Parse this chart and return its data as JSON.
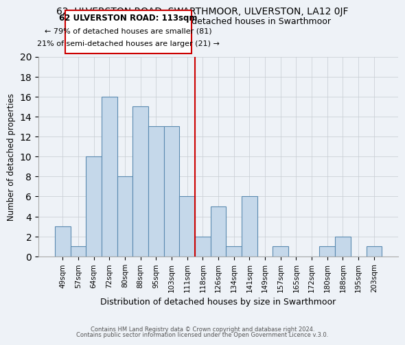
{
  "title": "62, ULVERSTON ROAD, SWARTHMOOR, ULVERSTON, LA12 0JF",
  "subtitle": "Size of property relative to detached houses in Swarthmoor",
  "xlabel": "Distribution of detached houses by size in Swarthmoor",
  "ylabel": "Number of detached properties",
  "bar_color": "#c5d8ea",
  "bar_edge_color": "#5a8ab0",
  "background_color": "#eef2f7",
  "plot_bg_color": "#eef2f7",
  "grid_color": "#c8cdd4",
  "annotation_border_color": "#cc0000",
  "vline_color": "#cc0000",
  "categories": [
    "49sqm",
    "57sqm",
    "64sqm",
    "72sqm",
    "80sqm",
    "88sqm",
    "95sqm",
    "103sqm",
    "111sqm",
    "118sqm",
    "126sqm",
    "134sqm",
    "141sqm",
    "149sqm",
    "157sqm",
    "165sqm",
    "172sqm",
    "180sqm",
    "188sqm",
    "195sqm",
    "203sqm"
  ],
  "values": [
    3,
    1,
    10,
    16,
    8,
    15,
    13,
    13,
    6,
    2,
    5,
    1,
    6,
    0,
    1,
    0,
    0,
    1,
    2,
    0,
    1
  ],
  "ylim": [
    0,
    20
  ],
  "vline_x_index": 8.5,
  "annotation_title": "62 ULVERSTON ROAD: 113sqm",
  "annotation_line1": "← 79% of detached houses are smaller (81)",
  "annotation_line2": "21% of semi-detached houses are larger (21) →",
  "footer_line1": "Contains HM Land Registry data © Crown copyright and database right 2024.",
  "footer_line2": "Contains public sector information licensed under the Open Government Licence v.3.0.",
  "title_fontsize": 10,
  "subtitle_fontsize": 9
}
